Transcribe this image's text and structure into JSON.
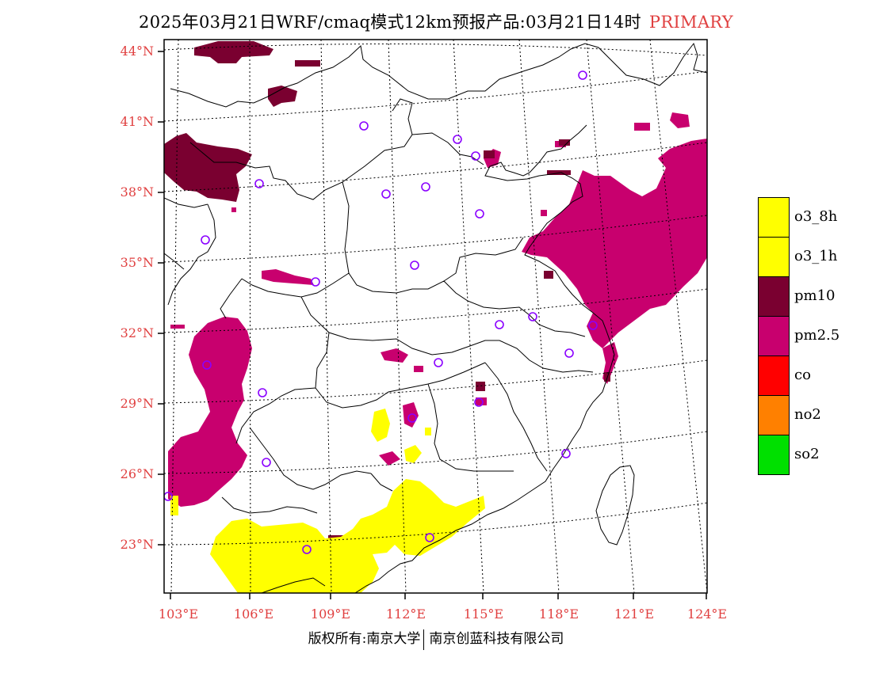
{
  "header": {
    "title": "2025年03月21日WRF/cmaq模式12km预报产品:03月21日14时",
    "tag": "PRIMARY"
  },
  "axes": {
    "lat_labels": [
      "44°N",
      "41°N",
      "38°N",
      "35°N",
      "32°N",
      "29°N",
      "26°N",
      "23°N"
    ],
    "lon_labels": [
      "103°E",
      "106°E",
      "109°E",
      "112°E",
      "115°E",
      "118°E",
      "121°E",
      "124°E"
    ]
  },
  "legend": {
    "items": [
      {
        "label": "o3_8h",
        "color": "#ffff00"
      },
      {
        "label": "o3_1h",
        "color": "#ffff00"
      },
      {
        "label": "pm10",
        "color": "#7a0030"
      },
      {
        "label": "pm2.5",
        "color": "#c8006e"
      },
      {
        "label": "co",
        "color": "#ff0000"
      },
      {
        "label": "no2",
        "color": "#ff8000"
      },
      {
        "label": "so2",
        "color": "#00e000"
      }
    ]
  },
  "footer": {
    "left": "版权所有:南京大学",
    "right": "南京创蓝科技有限公司"
  }
}
